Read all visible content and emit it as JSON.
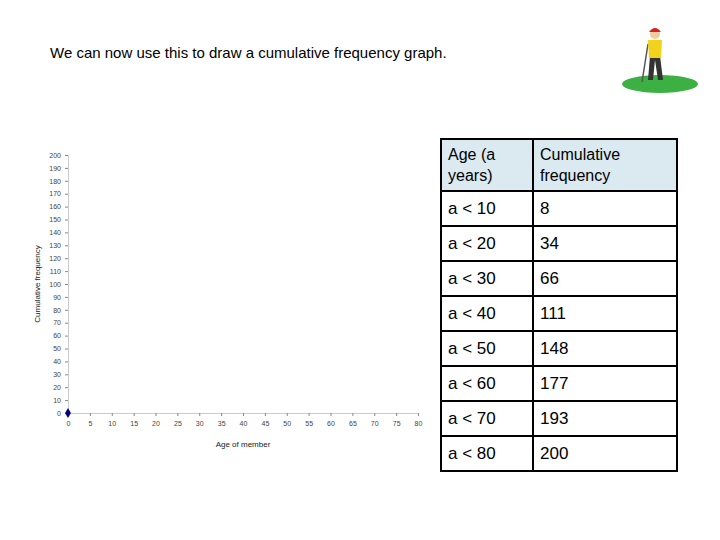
{
  "title": "We can now use this to draw a cumulative frequency graph.",
  "chart_data": {
    "type": "scatter",
    "x_label": "Age of member",
    "y_label": "Cumulative frequency",
    "x": [
      0
    ],
    "values": [
      0
    ],
    "color": "#000080",
    "marker": "diamond",
    "xlim": [
      0,
      80
    ],
    "xticks": [
      0,
      5,
      10,
      15,
      20,
      25,
      30,
      35,
      40,
      45,
      50,
      55,
      60,
      65,
      70,
      75,
      80
    ],
    "ylim": [
      0,
      200
    ],
    "yticks": [
      0,
      10,
      20,
      30,
      40,
      50,
      60,
      70,
      80,
      90,
      100,
      110,
      120,
      130,
      140,
      150,
      160,
      170,
      180,
      190,
      200
    ],
    "grid": false
  },
  "table": {
    "header": [
      "Age (a years)",
      "Cumulative frequency"
    ],
    "rows": [
      [
        "a < 10",
        8
      ],
      [
        "a < 20",
        34
      ],
      [
        "a < 30",
        66
      ],
      [
        "a < 40",
        111
      ],
      [
        "a < 50",
        148
      ],
      [
        "a < 60",
        177
      ],
      [
        "a < 70",
        193
      ],
      [
        "a < 80",
        200
      ]
    ]
  }
}
